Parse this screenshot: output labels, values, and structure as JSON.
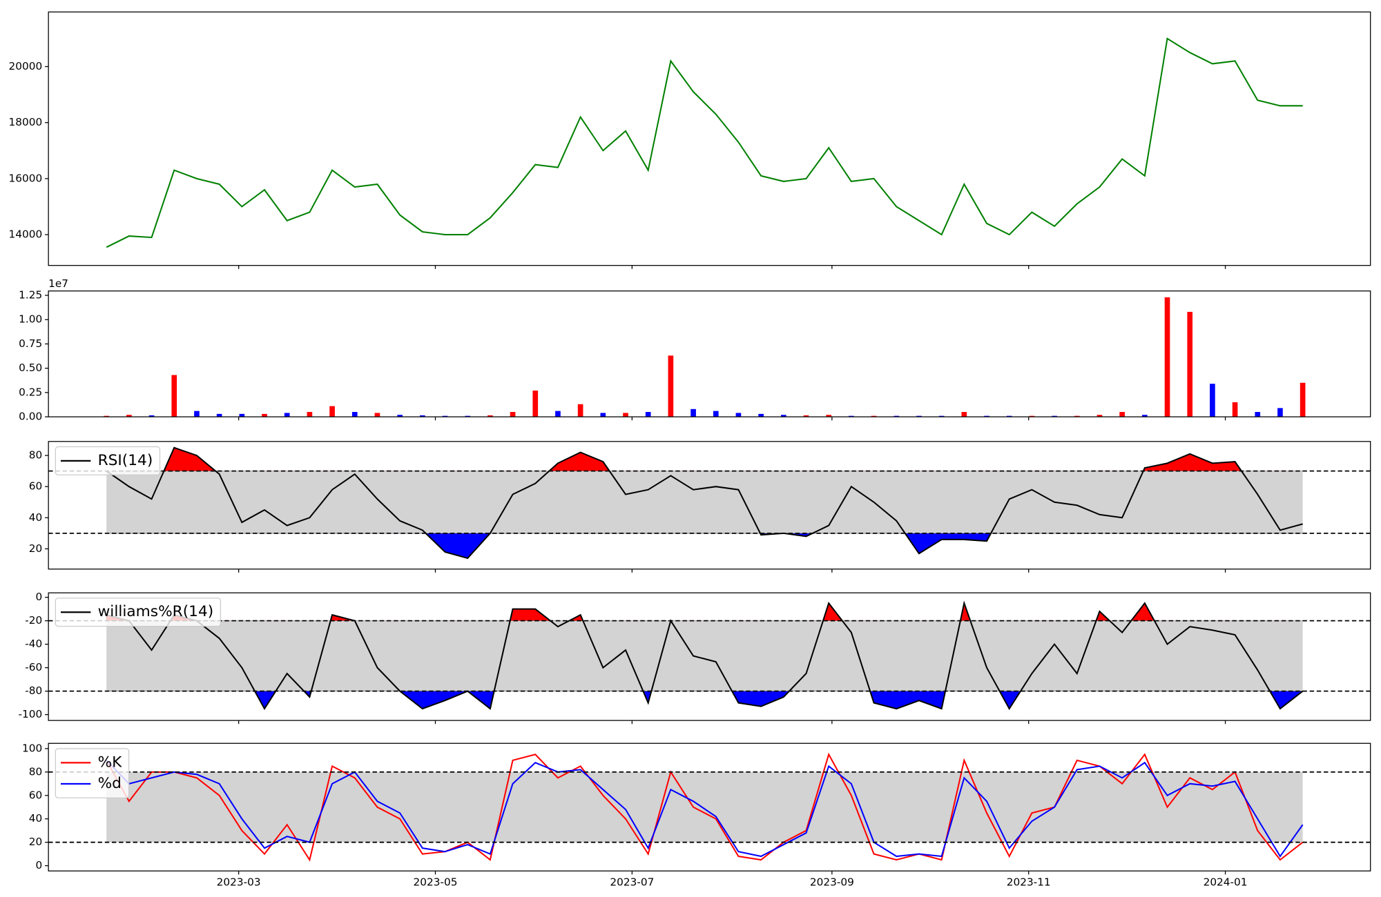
{
  "chart_data": [
    {
      "type": "line",
      "ylim": [
        12900,
        21950
      ],
      "yticks": [
        14000,
        16000,
        18000,
        20000
      ],
      "series": [
        {
          "color": "green",
          "values": [
            13550,
            13950,
            13900,
            16300,
            16000,
            15800,
            15000,
            15600,
            14500,
            14800,
            16300,
            15700,
            15800,
            14700,
            14100,
            14000,
            14000,
            14600,
            15500,
            16500,
            16400,
            18200,
            17000,
            17700,
            16300,
            20200,
            19100,
            18300,
            17300,
            16100,
            15900,
            16000,
            17100,
            15900,
            16000,
            15000,
            14500,
            14000,
            15800,
            14400,
            14000,
            14800,
            14300,
            15100,
            15700,
            16700,
            16100,
            21000,
            20500,
            20100,
            20200,
            18800,
            18600,
            18600
          ]
        }
      ]
    },
    {
      "type": "bar",
      "ylim": [
        0,
        12950000
      ],
      "offset_text": "1e7",
      "yticks": [
        {
          "value": 0,
          "label": "0.00"
        },
        {
          "value": 2500000,
          "label": "0.25"
        },
        {
          "value": 5000000,
          "label": "0.50"
        },
        {
          "value": 7500000,
          "label": "0.75"
        },
        {
          "value": 10000000,
          "label": "1.00"
        },
        {
          "value": 12500000,
          "label": "1.25"
        }
      ],
      "values": [
        100000,
        200000,
        150000,
        4300000,
        600000,
        300000,
        300000,
        300000,
        400000,
        500000,
        1100000,
        500000,
        400000,
        200000,
        150000,
        100000,
        100000,
        150000,
        500000,
        2700000,
        600000,
        1300000,
        400000,
        400000,
        500000,
        6300000,
        800000,
        600000,
        400000,
        300000,
        200000,
        150000,
        200000,
        100000,
        100000,
        100000,
        100000,
        100000,
        500000,
        100000,
        100000,
        100000,
        100000,
        100000,
        200000,
        500000,
        200000,
        12300000,
        10800000,
        3400000,
        1500000,
        500000,
        900000,
        3500000
      ],
      "colors": [
        "red",
        "red",
        "blue",
        "red",
        "blue",
        "blue",
        "blue",
        "red",
        "blue",
        "red",
        "red",
        "blue",
        "red",
        "blue",
        "blue",
        "blue",
        "blue",
        "red",
        "red",
        "red",
        "blue",
        "red",
        "blue",
        "red",
        "blue",
        "red",
        "blue",
        "blue",
        "blue",
        "blue",
        "blue",
        "red",
        "red",
        "blue",
        "red",
        "blue",
        "blue",
        "blue",
        "red",
        "blue",
        "blue",
        "red",
        "blue",
        "red",
        "red",
        "red",
        "blue",
        "red",
        "red",
        "blue",
        "red",
        "blue",
        "blue",
        "red"
      ]
    },
    {
      "type": "line",
      "ylim": [
        7,
        89
      ],
      "yticks": [
        20,
        40,
        60,
        80
      ],
      "hlines": [
        70,
        30
      ],
      "band_color": "lightgray",
      "upper_fill": "red",
      "lower_fill": "blue",
      "legend": "upper left",
      "series": [
        {
          "name": "RSI(14)",
          "color": "black",
          "values": [
            70,
            60,
            52,
            85,
            80,
            68,
            37,
            45,
            35,
            40,
            58,
            68,
            52,
            38,
            32,
            18,
            14,
            30,
            55,
            62,
            75,
            82,
            76,
            55,
            58,
            67,
            58,
            60,
            58,
            29,
            30,
            28,
            35,
            60,
            50,
            38,
            17,
            26,
            26,
            25,
            52,
            58,
            50,
            48,
            42,
            40,
            72,
            75,
            81,
            75,
            76,
            55,
            32,
            36
          ]
        }
      ]
    },
    {
      "type": "line",
      "ylim": [
        -105,
        3.8
      ],
      "yticks": [
        -100,
        -80,
        -60,
        -40,
        -20,
        0
      ],
      "hlines": [
        -20,
        -80
      ],
      "band_color": "lightgray",
      "upper_fill": "red",
      "lower_fill": "blue",
      "legend": "upper left",
      "series": [
        {
          "name": "williams%R(14)",
          "color": "black",
          "values": [
            -15,
            -20,
            -45,
            -15,
            -20,
            -35,
            -60,
            -95,
            -65,
            -85,
            -15,
            -20,
            -60,
            -80,
            -95,
            -88,
            -80,
            -95,
            -10,
            -10,
            -25,
            -15,
            -60,
            -45,
            -90,
            -20,
            -50,
            -55,
            -90,
            -93,
            -85,
            -65,
            -5,
            -30,
            -90,
            -95,
            -88,
            -95,
            -5,
            -60,
            -95,
            -65,
            -40,
            -65,
            -12,
            -30,
            -5,
            -40,
            -25,
            -28,
            -32,
            -62,
            -95,
            -80
          ]
        }
      ]
    },
    {
      "type": "line",
      "ylim": [
        -4.5,
        104.5
      ],
      "yticks": [
        0,
        20,
        40,
        60,
        80,
        100
      ],
      "hlines": [
        80,
        20
      ],
      "band_color": "lightgray",
      "legend": "upper left",
      "xlim": [
        19358,
        19768
      ],
      "xticks": [
        {
          "value": 19417,
          "label": "2023-03"
        },
        {
          "value": 19478,
          "label": "2023-05"
        },
        {
          "value": 19539,
          "label": "2023-07"
        },
        {
          "value": 19601,
          "label": "2023-09"
        },
        {
          "value": 19662,
          "label": "2023-11"
        },
        {
          "value": 19723,
          "label": "2024-01"
        }
      ],
      "x": [
        19376,
        19383,
        19390,
        19397,
        19404,
        19411,
        19418,
        19425,
        19432,
        19439,
        19446,
        19453,
        19460,
        19467,
        19474,
        19481,
        19488,
        19495,
        19502,
        19509,
        19516,
        19523,
        19530,
        19537,
        19544,
        19551,
        19558,
        19565,
        19572,
        19579,
        19586,
        19593,
        19600,
        19607,
        19614,
        19621,
        19628,
        19635,
        19642,
        19649,
        19656,
        19663,
        19670,
        19677,
        19684,
        19691,
        19698,
        19705,
        19712,
        19719,
        19726,
        19733,
        19740,
        19747
      ],
      "series": [
        {
          "name": "%K",
          "color": "red",
          "values": [
            90,
            55,
            80,
            80,
            75,
            60,
            30,
            10,
            35,
            5,
            85,
            75,
            50,
            40,
            10,
            12,
            20,
            5,
            90,
            95,
            75,
            85,
            60,
            40,
            10,
            80,
            50,
            40,
            8,
            5,
            20,
            30,
            95,
            60,
            10,
            5,
            10,
            5,
            90,
            45,
            8,
            45,
            50,
            90,
            85,
            70,
            95,
            50,
            75,
            65,
            80,
            30,
            5,
            20
          ]
        },
        {
          "name": "%d",
          "color": "blue",
          "values": [
            90,
            70,
            75,
            80,
            78,
            70,
            40,
            15,
            25,
            20,
            70,
            80,
            55,
            45,
            15,
            12,
            18,
            10,
            70,
            88,
            80,
            82,
            65,
            48,
            15,
            65,
            55,
            42,
            12,
            8,
            18,
            28,
            85,
            70,
            20,
            8,
            10,
            8,
            75,
            55,
            15,
            38,
            50,
            82,
            85,
            75,
            88,
            60,
            70,
            68,
            72,
            40,
            8,
            35
          ]
        }
      ]
    }
  ]
}
